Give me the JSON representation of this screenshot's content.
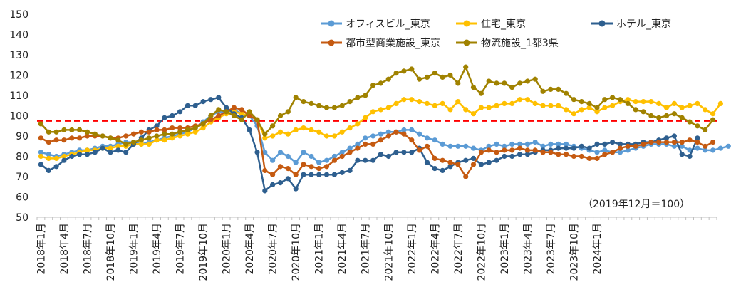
{
  "chart_data": {
    "type": "line",
    "title": "",
    "xlabel": "",
    "ylabel": "",
    "ylim": [
      50,
      150
    ],
    "yticks": [
      50,
      60,
      70,
      80,
      90,
      100,
      110,
      120,
      130,
      140,
      150
    ],
    "grid": false,
    "legend_position": "top-right",
    "annotation": "（2019年12月＝100）",
    "reference_line": {
      "y": 97.5,
      "color": "#ff0000",
      "style": "dashed"
    },
    "x_tick_labels": [
      "2018年1月",
      "2018年4月",
      "2018年7月",
      "2018年10月",
      "2019年1月",
      "2019年4月",
      "2019年7月",
      "2019年10月",
      "2020年1月",
      "2020年4月",
      "2020年7月",
      "2020年10月",
      "2021年1月",
      "2021年4月",
      "2021年7月",
      "2021年10月",
      "2022年1月",
      "2022年4月",
      "2022年7月",
      "2022年10月",
      "2023年1月",
      "2023年4月",
      "2023年7月",
      "2023年10月",
      "2024年1月"
    ],
    "x_tick_every": 3,
    "series": [
      {
        "name": "オフィスビル_東京",
        "color": "#5b9bd5",
        "values": [
          82,
          81,
          80,
          81,
          82,
          83,
          83,
          84,
          85,
          85,
          86,
          87,
          87,
          86,
          87,
          88,
          89,
          90,
          91,
          92,
          94,
          97,
          100,
          102,
          102,
          103,
          101,
          100,
          95,
          82,
          78,
          82,
          80,
          77,
          82,
          80,
          77,
          78,
          80,
          82,
          84,
          86,
          89,
          90,
          91,
          92,
          92,
          93,
          93,
          91,
          89,
          88,
          86,
          85,
          85,
          85,
          84,
          83,
          85,
          86,
          85,
          86,
          86,
          86,
          87,
          85,
          86,
          86,
          86,
          85,
          84,
          83,
          82,
          83,
          82,
          82,
          83,
          84,
          85,
          86,
          86,
          86,
          85,
          85,
          83,
          84,
          83,
          83,
          84,
          85
        ]
      },
      {
        "name": "住宅_東京",
        "color": "#ffc000",
        "values": [
          80,
          79,
          79,
          80,
          81,
          82,
          83,
          83,
          84,
          84,
          85,
          85,
          86,
          86,
          86,
          88,
          88,
          89,
          90,
          91,
          92,
          94,
          97,
          99,
          101,
          102,
          101,
          100,
          98,
          89,
          90,
          92,
          91,
          93,
          94,
          93,
          92,
          90,
          90,
          92,
          94,
          96,
          99,
          102,
          103,
          104,
          106,
          108,
          108,
          107,
          106,
          105,
          106,
          103,
          107,
          103,
          101,
          104,
          104,
          105,
          106,
          106,
          108,
          108,
          106,
          105,
          105,
          105,
          103,
          101,
          103,
          104,
          102,
          104,
          105,
          107,
          108,
          107,
          107,
          107,
          106,
          104,
          106,
          104,
          105,
          106,
          103,
          101,
          106
        ]
      },
      {
        "name": "ホテル_東京",
        "color": "#2e5f8f",
        "values": [
          76,
          73,
          75,
          78,
          80,
          81,
          81,
          82,
          84,
          82,
          83,
          82,
          86,
          89,
          93,
          95,
          99,
          100,
          102,
          105,
          105,
          107,
          108,
          109,
          104,
          101,
          99,
          93,
          82,
          63,
          66,
          67,
          69,
          64,
          71,
          71,
          71,
          71,
          71,
          72,
          73,
          78,
          78,
          78,
          81,
          80,
          82,
          82,
          82,
          84,
          77,
          74,
          73,
          75,
          77,
          78,
          79,
          76,
          77,
          78,
          80,
          80,
          81,
          81,
          82,
          83,
          83,
          84,
          84,
          84,
          85,
          84,
          86,
          86,
          87,
          86,
          86,
          86,
          87,
          87,
          88,
          89,
          90,
          81,
          80,
          89
        ]
      },
      {
        "name": "都市型商業施設_東京",
        "color": "#c55a11",
        "values": [
          89,
          87,
          88,
          88,
          89,
          89,
          90,
          90,
          90,
          89,
          89,
          90,
          91,
          92,
          92,
          93,
          93,
          94,
          94,
          94,
          95,
          96,
          98,
          100,
          102,
          104,
          103,
          100,
          98,
          73,
          71,
          75,
          74,
          71,
          76,
          75,
          74,
          75,
          78,
          80,
          82,
          84,
          86,
          86,
          88,
          90,
          92,
          91,
          88,
          83,
          85,
          79,
          78,
          77,
          76,
          70,
          76,
          82,
          83,
          82,
          83,
          83,
          84,
          83,
          83,
          82,
          82,
          81,
          81,
          80,
          80,
          79,
          79,
          81,
          82,
          84,
          85,
          85,
          86,
          87,
          87,
          87,
          87,
          87,
          88,
          87,
          85,
          87
        ]
      },
      {
        "name": "物流施設_1都3県",
        "color": "#a08200",
        "values": [
          96,
          92,
          92,
          93,
          93,
          93,
          92,
          91,
          90,
          89,
          88,
          86,
          87,
          88,
          89,
          90,
          91,
          91,
          92,
          93,
          94,
          96,
          100,
          103,
          102,
          100,
          98,
          102,
          98,
          91,
          95,
          100,
          102,
          109,
          107,
          106,
          105,
          104,
          104,
          105,
          107,
          109,
          110,
          115,
          116,
          118,
          121,
          122,
          123,
          118,
          119,
          121,
          119,
          120,
          116,
          124,
          114,
          111,
          117,
          116,
          116,
          114,
          116,
          117,
          118,
          112,
          113,
          113,
          111,
          108,
          107,
          106,
          104,
          108,
          109,
          108,
          106,
          103,
          102,
          100,
          99,
          100,
          101,
          99,
          97,
          95,
          93,
          98
        ]
      }
    ]
  }
}
